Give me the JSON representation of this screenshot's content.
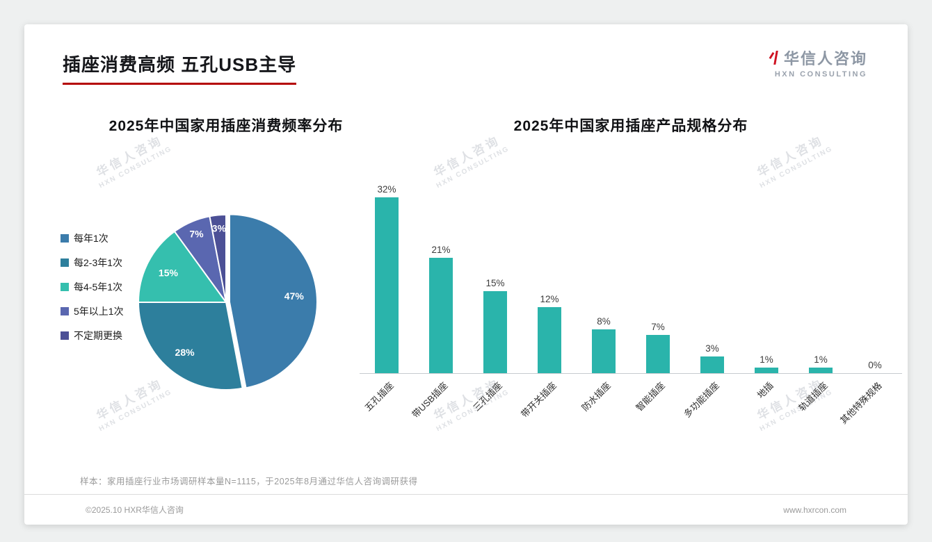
{
  "page": {
    "title": "插座消费高频 五孔USB主导",
    "accent_color": "#b40000"
  },
  "logo": {
    "name": "华信人咨询",
    "sub": "HXN CONSULTING"
  },
  "watermark": {
    "line1": "华信人咨询",
    "line2": "HXN CONSULTING"
  },
  "chart_data": [
    {
      "type": "pie",
      "title": "2025年中国家用插座消费频率分布",
      "labels": [
        "每年1次",
        "每2-3年1次",
        "每4-5年1次",
        "5年以上1次",
        "不定期更换"
      ],
      "values": [
        47,
        28,
        15,
        7,
        3
      ],
      "colors": [
        "#3b7cab",
        "#2d7f9c",
        "#35bfae",
        "#5a67b0",
        "#4c5096"
      ],
      "legend_position": "left",
      "data_label_format": "percent"
    },
    {
      "type": "bar",
      "title": "2025年中国家用插座产品规格分布",
      "categories": [
        "五孔插座",
        "带USB插座",
        "三孔插座",
        "带开关插座",
        "防水插座",
        "智能插座",
        "多功能插座",
        "地插",
        "轨道插座",
        "其他特殊规格"
      ],
      "values": [
        32,
        21,
        15,
        12,
        8,
        7,
        3,
        1,
        1,
        0
      ],
      "bar_color": "#2ab4ab",
      "value_format": "percent",
      "ylim": [
        0,
        35
      ],
      "grid": false,
      "legend": false
    }
  ],
  "footnote": "样本：家用插座行业市场调研样本量N=1115，于2025年8月通过华信人咨询调研获得",
  "footer": {
    "left": "©2025.10 HXR华信人咨询",
    "right": "www.hxrcon.com"
  }
}
